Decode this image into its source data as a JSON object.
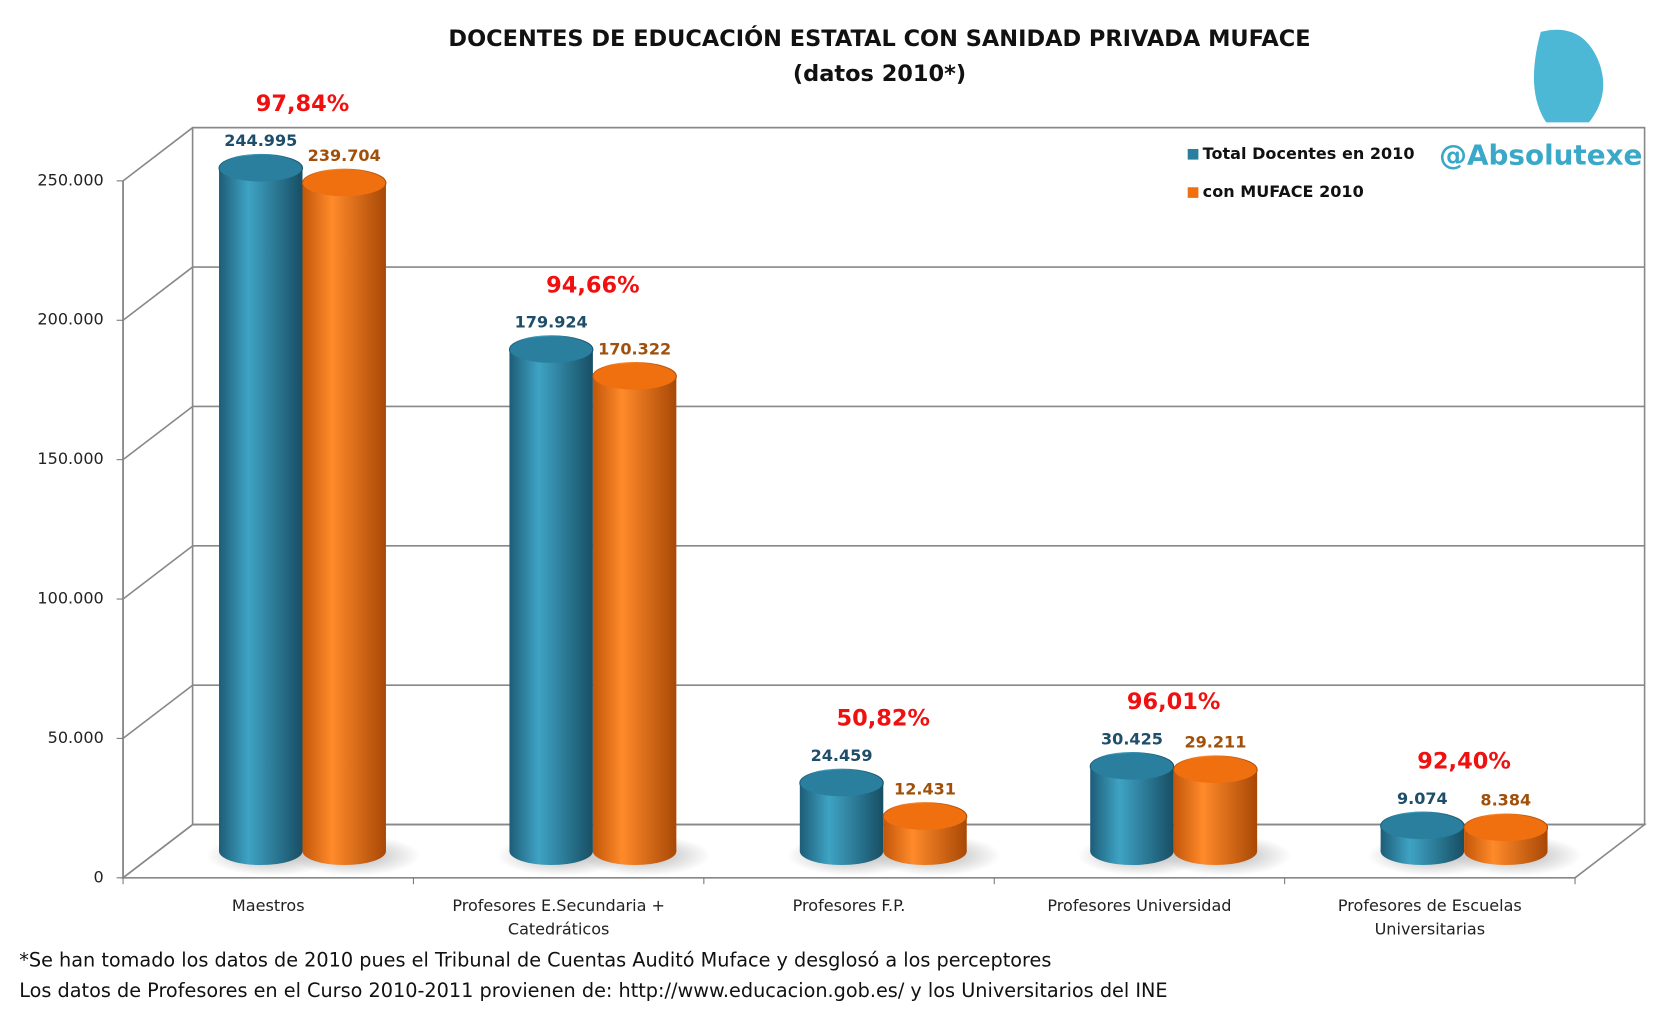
{
  "chart_data": {
    "type": "bar",
    "title": "DOCENTES DE EDUCACIÓN ESTATAL CON SANIDAD PRIVADA MUFACE",
    "subtitle": "(datos 2010*)",
    "watermark": "@Absolutexe",
    "categories": [
      [
        "Maestros"
      ],
      [
        "Profesores E.Secundaria +",
        "Catedráticos"
      ],
      [
        "Profesores F.P."
      ],
      [
        "Profesores Universidad"
      ],
      [
        "Profesores de Escuelas",
        "Universitarias"
      ]
    ],
    "series": [
      {
        "name": "Total Docentes en 2010",
        "color": "#2a7f9e",
        "values": [
          244995,
          179924,
          24459,
          30425,
          9074
        ],
        "value_labels": [
          "244.995",
          "179.924",
          "24.459",
          "30.425",
          "9.074"
        ],
        "label_color": "#1f4e6a"
      },
      {
        "name": "con MUFACE 2010",
        "color": "#f07010",
        "values": [
          239704,
          170322,
          12431,
          29211,
          8384
        ],
        "value_labels": [
          "239.704",
          "170.322",
          "12.431",
          "29.211",
          "8.384"
        ],
        "label_color": "#a0500a"
      }
    ],
    "percent_labels": [
      "97,84%",
      "94,66%",
      "50,82%",
      "96,01%",
      "92,40%"
    ],
    "ylim": [
      0,
      250000
    ],
    "yticks": [
      0,
      {
        "value": 50000,
        "label": "50.000"
      },
      {
        "value": 100000,
        "label": "100.000"
      },
      {
        "value": 150000,
        "label": "150.000"
      },
      {
        "value": 200000,
        "label": "200.000"
      },
      {
        "value": 250000,
        "label": "250.000"
      }
    ],
    "grid": true,
    "legend": "top-right",
    "footnotes": [
      "*Se han tomado los datos de 2010 pues el Tribunal de Cuentas Auditó Muface y desglosó a los perceptores",
      "Los datos de Profesores en el Curso 2010-2011 provienen de: http://www.educacion.gob.es/ y los Universitarios del INE"
    ]
  }
}
